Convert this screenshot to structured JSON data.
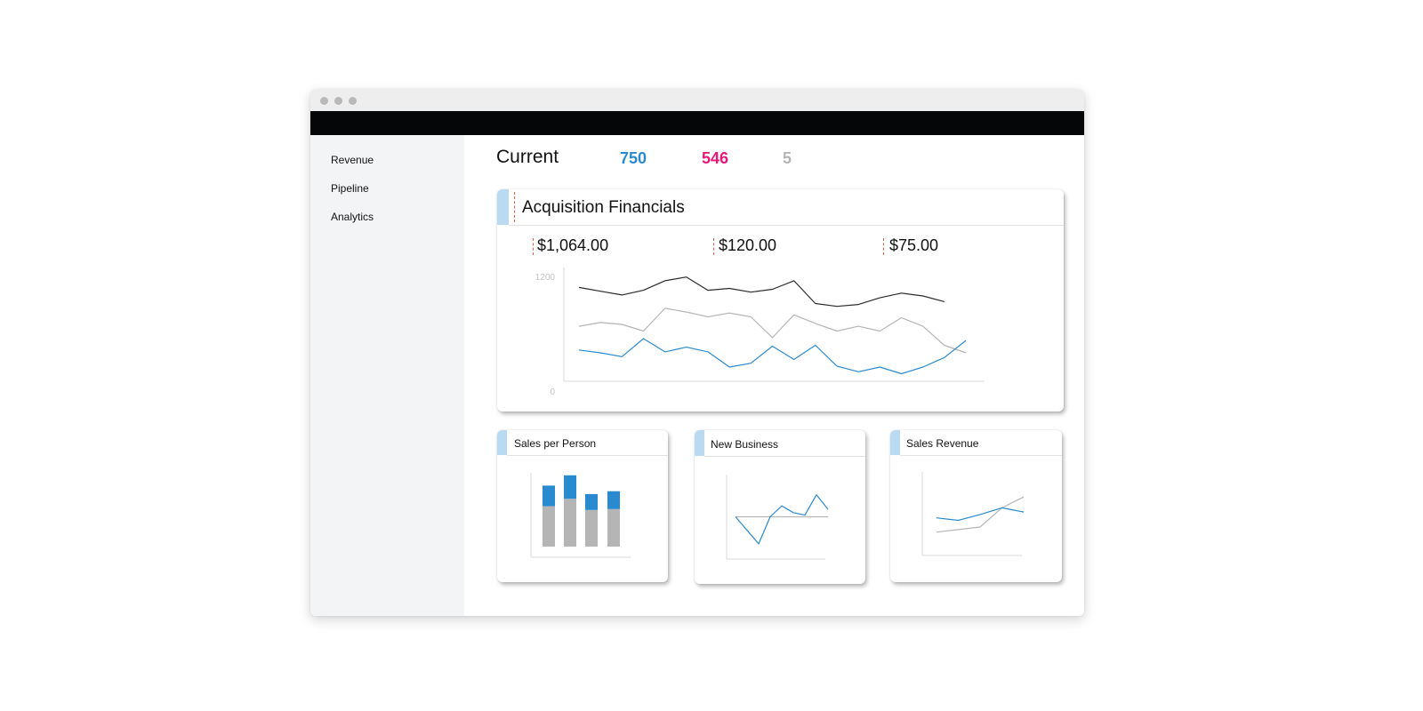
{
  "window": {
    "controls": [
      "close-dot",
      "minimize-dot",
      "zoom-dot"
    ]
  },
  "sidebar": {
    "items": [
      {
        "label": "Revenue"
      },
      {
        "label": "Pipeline"
      },
      {
        "label": "Analytics"
      }
    ]
  },
  "header": {
    "title": "Current",
    "stats": [
      {
        "value": "750",
        "color": "#2a8ad0"
      },
      {
        "value": "546",
        "color": "#e8187a"
      },
      {
        "value": "5",
        "color": "#b5b5b5"
      }
    ]
  },
  "acquisition": {
    "title": "Acquisition Financials",
    "metrics": [
      "$1,064.00",
      "$120.00",
      "$75.00"
    ]
  },
  "colors": {
    "accent_tab": "#b9daf1",
    "dash_marker": "#e8603f",
    "series_dark": "#2b2b2b",
    "series_gray": "#b5b5b5",
    "series_blue": "#2a8ad0"
  },
  "chart_data": [
    {
      "type": "line",
      "ylim": [
        0,
        1200
      ],
      "yticks": [
        "1200",
        "0"
      ],
      "series": [
        {
          "color": "#2b2b2b",
          "values": [
            990,
            950,
            910,
            960,
            1060,
            1100,
            960,
            980,
            940,
            970,
            1060,
            820,
            790,
            810,
            880,
            930,
            900,
            840
          ]
        },
        {
          "color": "#b5b5b5",
          "values": [
            580,
            620,
            600,
            530,
            770,
            730,
            680,
            720,
            680,
            460,
            700,
            610,
            530,
            580,
            530,
            670,
            580,
            380,
            300
          ]
        },
        {
          "color": "#2a8ad0",
          "values": [
            330,
            300,
            260,
            450,
            310,
            360,
            310,
            150,
            190,
            370,
            230,
            380,
            160,
            100,
            150,
            80,
            150,
            250,
            430
          ]
        }
      ]
    },
    {
      "type": "bar",
      "title": "Sales per Person",
      "categories": [
        "",
        "",
        "",
        ""
      ],
      "series": [
        {
          "color": "#b5b5b5",
          "values": [
            43,
            51,
            39,
            40
          ]
        },
        {
          "color": "#2a8ad0",
          "values": [
            22,
            25,
            17,
            19
          ]
        }
      ],
      "ylim": [
        0,
        90
      ]
    },
    {
      "type": "line",
      "title": "New Business",
      "series": [
        {
          "color": "#b5b5b5",
          "values": [
            50,
            50,
            50,
            50,
            50,
            50,
            50,
            50,
            50,
            50,
            50
          ]
        },
        {
          "color": "#2a8ad0",
          "values": [
            50,
            34,
            18,
            50,
            63,
            55,
            52,
            76,
            59
          ]
        }
      ],
      "ylim": [
        0,
        100
      ]
    },
    {
      "type": "line",
      "title": "Sales Revenue",
      "series": [
        {
          "color": "#b5b5b5",
          "values": [
            28,
            31,
            34,
            57,
            70
          ]
        },
        {
          "color": "#2a8ad0",
          "values": [
            45,
            42,
            49,
            57,
            52
          ]
        }
      ],
      "ylim": [
        0,
        100
      ]
    }
  ]
}
